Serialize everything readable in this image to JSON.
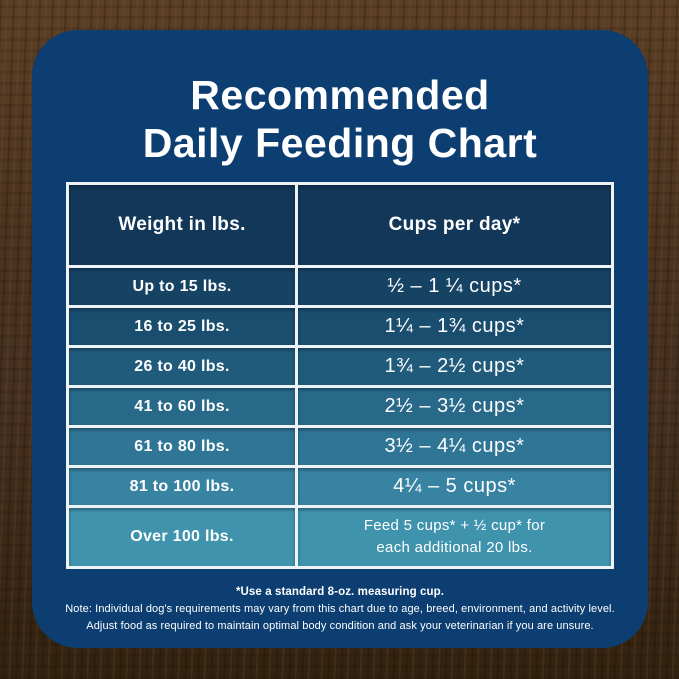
{
  "title": {
    "line1": "Recommended",
    "line2": "Daily Feeding Chart"
  },
  "table": {
    "headers": [
      "Weight in lbs.",
      "Cups per day*"
    ],
    "rows": [
      {
        "weight": "Up to 15 lbs.",
        "cups": [
          "½ – 1 ¼ cups*"
        ]
      },
      {
        "weight": "16 to 25 lbs.",
        "cups": [
          "1¼ – 1¾ cups*"
        ]
      },
      {
        "weight": "26 to 40 lbs.",
        "cups": [
          "1¾ – 2½ cups*"
        ]
      },
      {
        "weight": "41 to 60 lbs.",
        "cups": [
          "2½ – 3½ cups*"
        ]
      },
      {
        "weight": "61 to 80 lbs.",
        "cups": [
          "3½ – 4¼ cups*"
        ]
      },
      {
        "weight": "81 to 100 lbs.",
        "cups": [
          "4¼ – 5 cups*"
        ]
      },
      {
        "weight": "Over 100 lbs.",
        "cups": [
          "Feed 5 cups* + ½ cup* for",
          "each additional 20 lbs."
        ]
      }
    ]
  },
  "footnote": {
    "line1": "*Use a standard 8-oz. measuring cup.",
    "line2": "Note: Individual dog's requirements may vary from this chart due to age, breed, environment, and activity level.",
    "line3": "Adjust food as required to maintain optimal body condition and ask your veterinarian if you are unsure."
  },
  "colors": {
    "card_bg": "#0c3e71",
    "header_bg": "#123759",
    "row_colors": [
      "#164264",
      "#1a4e6f",
      "#215b7c",
      "#286889",
      "#2f7595",
      "#3783a1",
      "#3f93ad"
    ],
    "border_color": "#eef3f6",
    "text_color": "#ffffff",
    "wood_dark": "#33220f",
    "wood_light": "#5c4026"
  },
  "chart_data": {
    "type": "table",
    "title": "Recommended Daily Feeding Chart",
    "columns": [
      "Weight in lbs.",
      "Cups per day*"
    ],
    "rows": [
      [
        "Up to 15 lbs.",
        "½ – 1 ¼ cups*"
      ],
      [
        "16 to 25 lbs.",
        "1¼ – 1¾ cups*"
      ],
      [
        "26 to 40 lbs.",
        "1¾ – 2½ cups*"
      ],
      [
        "41 to 60 lbs.",
        "2½ – 3½ cups*"
      ],
      [
        "61 to 80 lbs.",
        "3½ – 4¼ cups*"
      ],
      [
        "81 to 100 lbs.",
        "4¼ – 5 cups*"
      ],
      [
        "Over 100 lbs.",
        "Feed 5 cups* + ½ cup* for each additional 20 lbs."
      ]
    ],
    "notes": [
      "*Use a standard 8-oz. measuring cup.",
      "Note: Individual dog's requirements may vary from this chart due to age, breed, environment, and activity level.",
      "Adjust food as required to maintain optimal body condition and ask your veterinarian if you are unsure."
    ]
  }
}
